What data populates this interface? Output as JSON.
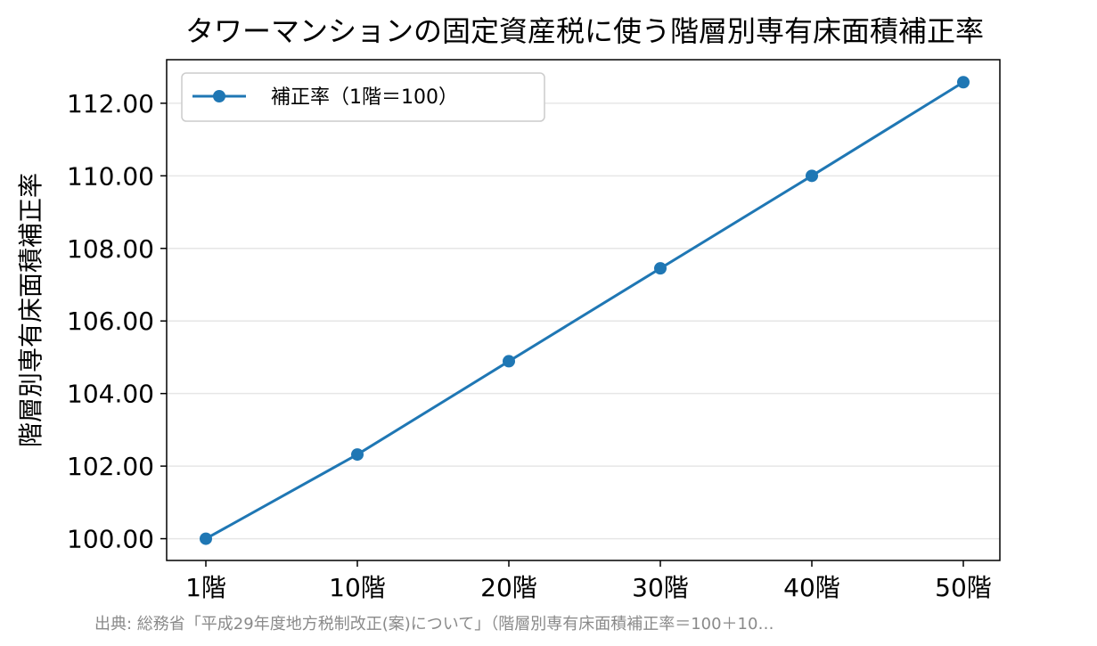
{
  "chart_data": {
    "type": "line",
    "title": "タワーマンションの固定資産税に使う階層別専有床面積補正率",
    "xlabel": "",
    "ylabel": "階層別専有床面積補正率",
    "x": [
      "1階",
      "10階",
      "20階",
      "30階",
      "40階",
      "50階"
    ],
    "series": [
      {
        "name": "補正率（1階＝100）",
        "color": "#1f77b4",
        "values": [
          100.0,
          102.32,
          104.89,
          107.45,
          110.0,
          112.58
        ]
      }
    ],
    "ylim": [
      99.4,
      113.2
    ],
    "yticks": [
      "100.00",
      "102.00",
      "104.00",
      "106.00",
      "108.00",
      "110.00",
      "112.00"
    ],
    "ytick_values": [
      100,
      102,
      104,
      106,
      108,
      110,
      112
    ],
    "grid": "horizontal",
    "legend_position": "top-left",
    "source": "出典: 総務省「平成29年度地方税制改正(案)について」（階層別専有床面積補正率＝100＋10…"
  }
}
